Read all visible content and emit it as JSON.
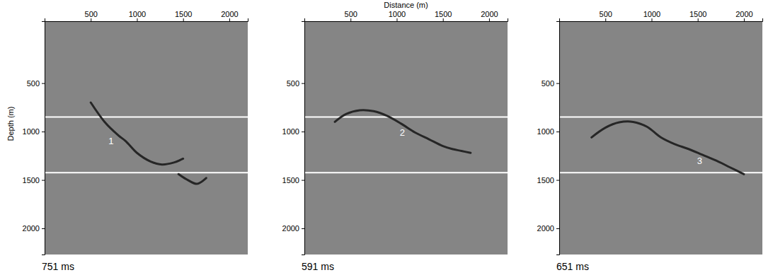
{
  "chart_data": [
    {
      "type": "line",
      "title": "751 ms",
      "y_label": "Depth (m)",
      "xlim": [
        0,
        2200
      ],
      "ylim": [
        -140,
        2270
      ],
      "xticks": [
        500,
        1000,
        1500,
        2000
      ],
      "yticks": [
        500,
        1000,
        1500,
        2000
      ],
      "grid": false,
      "series": [
        {
          "color": "#ffffff",
          "x": [
            0,
            2200
          ],
          "values": [
            850,
            850
          ]
        },
        {
          "color": "#ffffff",
          "x": [
            0,
            2200
          ],
          "values": [
            1425,
            1425
          ]
        },
        {
          "color": "#262626",
          "x": [
            500,
            650,
            800,
            880,
            1000,
            1150,
            1270,
            1400,
            1500
          ],
          "values": [
            700,
            900,
            1040,
            1100,
            1220,
            1310,
            1340,
            1320,
            1280
          ]
        },
        {
          "color": "#262626",
          "x": [
            1450,
            1550,
            1650,
            1750
          ],
          "values": [
            1440,
            1500,
            1540,
            1480
          ]
        }
      ],
      "annotations": [
        {
          "text": "1",
          "x": 720,
          "y": 1100
        }
      ]
    },
    {
      "type": "line",
      "title": "591 ms",
      "x_label": "Distance (m)",
      "xlim": [
        0,
        2200
      ],
      "ylim": [
        -140,
        2270
      ],
      "xticks": [
        500,
        1000,
        1500,
        2000
      ],
      "yticks": [
        500,
        1000,
        1500,
        2000
      ],
      "grid": false,
      "series": [
        {
          "color": "#ffffff",
          "x": [
            0,
            2200
          ],
          "values": [
            850,
            850
          ]
        },
        {
          "color": "#ffffff",
          "x": [
            0,
            2200
          ],
          "values": [
            1425,
            1425
          ]
        },
        {
          "color": "#262626",
          "x": [
            330,
            450,
            600,
            750,
            900,
            1050,
            1200,
            1350,
            1500,
            1600,
            1700,
            1800
          ],
          "values": [
            900,
            820,
            780,
            790,
            840,
            920,
            1010,
            1080,
            1150,
            1180,
            1200,
            1220
          ]
        }
      ],
      "annotations": [
        {
          "text": "2",
          "x": 1060,
          "y": 1010
        }
      ]
    },
    {
      "type": "line",
      "title": "651 ms",
      "xlim": [
        0,
        2200
      ],
      "ylim": [
        -140,
        2270
      ],
      "xticks": [
        500,
        1000,
        1500,
        2000
      ],
      "yticks": [
        500,
        1000,
        1500,
        2000
      ],
      "grid": false,
      "series": [
        {
          "color": "#ffffff",
          "x": [
            0,
            2200
          ],
          "values": [
            850,
            850
          ]
        },
        {
          "color": "#ffffff",
          "x": [
            0,
            2200
          ],
          "values": [
            1425,
            1425
          ]
        },
        {
          "color": "#262626",
          "x": [
            350,
            500,
            650,
            800,
            950,
            1100,
            1250,
            1400,
            1550,
            1700,
            1850,
            2000
          ],
          "values": [
            1060,
            960,
            905,
            900,
            950,
            1060,
            1130,
            1180,
            1240,
            1300,
            1370,
            1440
          ]
        }
      ],
      "annotations": [
        {
          "text": "3",
          "x": 1520,
          "y": 1300
        }
      ]
    }
  ]
}
